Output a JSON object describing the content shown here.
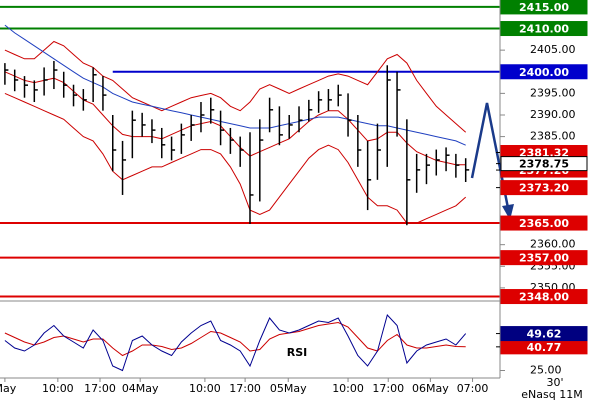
{
  "chart_data": {
    "type": "ohlc",
    "xlim": [
      -0.5,
      50.5
    ],
    "xticks": [
      {
        "value": 0,
        "label": "May"
      },
      {
        "value": 5.4,
        "label": "10:00"
      },
      {
        "value": 9.7,
        "label": "17:00"
      },
      {
        "value": 13.8,
        "label": "04May"
      },
      {
        "value": 20.4,
        "label": "10:00"
      },
      {
        "value": 24.5,
        "label": "17:00"
      },
      {
        "value": 28.9,
        "label": "05May"
      },
      {
        "value": 35,
        "label": "10:00"
      },
      {
        "value": 39.1,
        "label": "17:00"
      },
      {
        "value": 43.4,
        "label": "06May"
      },
      {
        "value": 47.7,
        "label": "07:00"
      }
    ],
    "ylim": [
      2347.2,
      2416.6
    ],
    "yticks": [
      {
        "value": 2405,
        "label": "2405.00"
      },
      {
        "value": 2395,
        "label": "2395.00"
      },
      {
        "value": 2390,
        "label": "2390.00"
      },
      {
        "value": 2385,
        "label": "2385.00"
      },
      {
        "value": 2360,
        "label": "2360.00"
      },
      {
        "value": 2355,
        "label": "2355.00"
      },
      {
        "value": 2350,
        "label": "2350.00"
      }
    ],
    "bar_color": "#000000",
    "high": [
      2402,
      2400.5,
      2399,
      2398,
      2401,
      2402.5,
      2400,
      2397,
      2396,
      2401,
      2399,
      2390,
      2384,
      2391,
      2390.5,
      2389,
      2387,
      2385,
      2388,
      2390,
      2393,
      2394,
      2391,
      2387,
      2385,
      2386,
      2389,
      2394,
      2392,
      2390,
      2392,
      2393.5,
      2395.5,
      2396,
      2397,
      2395,
      2390,
      2384,
      2388,
      2401.5,
      2400,
      2389,
      2381,
      2381,
      2382,
      2382.5,
      2381,
      2380
    ],
    "low": [
      2397,
      2395.5,
      2394,
      2393,
      2394.5,
      2396,
      2394,
      2392,
      2391,
      2393,
      2391,
      2377,
      2371.5,
      2380,
      2385,
      2383.5,
      2380,
      2379.5,
      2381,
      2384,
      2386,
      2388,
      2383,
      2381,
      2378,
      2364.8,
      2370,
      2386,
      2383,
      2384.5,
      2386,
      2388.5,
      2390.5,
      2391,
      2392,
      2385,
      2378,
      2368,
      2375,
      2378,
      2385,
      2364.5,
      2372,
      2374,
      2376,
      2377,
      2375.5,
      2374.5
    ],
    "close": [
      2400.4,
      2398.1,
      2396.9,
      2395.8,
      2398.1,
      2400.4,
      2396.9,
      2394.6,
      2393.5,
      2399.3,
      2394.6,
      2381.9,
      2379.6,
      2388.8,
      2387.7,
      2386.5,
      2383.1,
      2381.9,
      2385.4,
      2387.7,
      2390.0,
      2391.2,
      2386.5,
      2384.2,
      2381.9,
      2371.5,
      2384.2,
      2391.2,
      2385.4,
      2387.7,
      2388.8,
      2391.2,
      2393.5,
      2393.5,
      2394.6,
      2388.8,
      2381.9,
      2375.0,
      2381.9,
      2398.1,
      2395.8,
      2375.0,
      2377.3,
      2378.4,
      2379.6,
      2380.7,
      2378.4,
      2377.3
    ],
    "overlays": [
      {
        "color": "#cc0000",
        "values": [
          2405,
          2404,
          2403,
          2403,
          2405,
          2407,
          2406,
          2404,
          2402,
          2401,
          2399,
          2398,
          2396,
          2394,
          2393,
          2392,
          2391,
          2392,
          2393,
          2394,
          2394.5,
          2395,
          2394,
          2392,
          2391,
          2393,
          2396,
          2397,
          2396,
          2395,
          2396,
          2397,
          2398,
          2399,
          2399.5,
          2399,
          2398,
          2397,
          2400,
          2403,
          2404,
          2402,
          2398,
          2395,
          2392,
          2390,
          2388,
          2386
        ]
      },
      {
        "color": "#cc0000",
        "values": [
          2400,
          2399,
          2398,
          2397.5,
          2398,
          2398.5,
          2397.5,
          2395.5,
          2393.5,
          2392.5,
          2390,
          2387.5,
          2385.5,
          2385,
          2385,
          2385,
          2384.5,
          2385.5,
          2386.5,
          2387.5,
          2388,
          2388.5,
          2387.5,
          2385,
          2382.5,
          2380.5,
          2381.5,
          2382.5,
          2383.5,
          2384.5,
          2386.5,
          2388.5,
          2390,
          2391,
          2391,
          2389,
          2386.5,
          2384,
          2384.5,
          2386,
          2386,
          2383.5,
          2381.5,
          2380.5,
          2379.5,
          2379,
          2378.5,
          2378.5
        ]
      },
      {
        "color": "#cc0000",
        "values": [
          2395,
          2394,
          2393,
          2392,
          2391,
          2390,
          2389,
          2387,
          2385,
          2384,
          2381,
          2377,
          2375,
          2376,
          2377,
          2378,
          2378,
          2379,
          2380,
          2381,
          2382,
          2382,
          2381,
          2378,
          2374,
          2368,
          2367,
          2368,
          2371,
          2374,
          2377,
          2380,
          2382,
          2383,
          2382,
          2379,
          2375,
          2371,
          2369,
          2369,
          2368,
          2365,
          2365,
          2366,
          2367,
          2368,
          2369,
          2371
        ]
      },
      {
        "color": "#2040c0",
        "values": [
          2410.8,
          2409,
          2407.5,
          2406,
          2404.5,
          2403,
          2401.5,
          2400,
          2398.5,
          2397.5,
          2396.5,
          2395,
          2394,
          2393,
          2392.5,
          2392,
          2391.5,
          2391,
          2390.5,
          2390,
          2389.5,
          2389,
          2388.5,
          2388,
          2387.5,
          2387,
          2387,
          2387,
          2387.5,
          2388,
          2388.5,
          2389,
          2389.5,
          2389.5,
          2389.5,
          2389,
          2388.5,
          2388,
          2387.5,
          2387.5,
          2387,
          2386.5,
          2386,
          2385.5,
          2385,
          2384.5,
          2384,
          2383
        ]
      }
    ],
    "levels": [
      {
        "value": 2415,
        "label": "2415.00",
        "color": "#008000"
      },
      {
        "value": 2410,
        "label": "2410.00",
        "color": "#008000"
      },
      {
        "value": 2400,
        "label": "2400.00",
        "color": "#0000cc",
        "start": 11
      },
      {
        "value": 2365,
        "label": "2365.00",
        "color": "#dd0000"
      },
      {
        "value": 2357,
        "label": "2357.00",
        "color": "#dd0000"
      },
      {
        "value": 2348,
        "label": "2348.00",
        "color": "#dd0000"
      }
    ],
    "price_tags": [
      {
        "value": 2381.32,
        "label": "2381.32",
        "color": "#dd0000"
      },
      {
        "value": 2377.26,
        "label": "2377.26",
        "color": "#dd0000"
      },
      {
        "value": 2373.2,
        "label": "2373.20",
        "color": "#dd0000"
      },
      {
        "value": 2378.75,
        "label": "2378.75",
        "color": "#ffffff"
      }
    ],
    "rsi": {
      "name": "RSI",
      "ylim": [
        20,
        70
      ],
      "yticks": [
        {
          "value": 25,
          "label": "25.00"
        }
      ],
      "series": [
        {
          "color": "#cc0000",
          "values": [
            50,
            47,
            44,
            42,
            44,
            47,
            48,
            46,
            44,
            46,
            46,
            40,
            35,
            38,
            42,
            42,
            41,
            39,
            40,
            43,
            47,
            51,
            50,
            47,
            44,
            38,
            39,
            46,
            49,
            50,
            51,
            53,
            55,
            56,
            57,
            54,
            47,
            40,
            38,
            45,
            49,
            42,
            40,
            40,
            41,
            42,
            41,
            40.77
          ]
        },
        {
          "color": "#000090",
          "values": [
            45,
            40,
            38,
            42,
            50,
            55,
            48,
            44,
            40,
            52,
            45,
            28,
            25,
            45,
            48,
            42,
            38,
            35,
            44,
            50,
            55,
            58,
            45,
            42,
            38,
            28,
            45,
            60,
            52,
            50,
            52,
            55,
            58,
            57,
            60,
            48,
            35,
            28,
            38,
            62,
            55,
            30,
            38,
            42,
            44,
            46,
            42,
            49.62
          ]
        }
      ],
      "tags": [
        {
          "value": 40.77,
          "label": "40.77",
          "color": "#dd0000"
        },
        {
          "value": 49.62,
          "label": "49.62",
          "color": "#000080"
        }
      ]
    },
    "timeframe": "30'",
    "source": "eNasq 11M"
  }
}
